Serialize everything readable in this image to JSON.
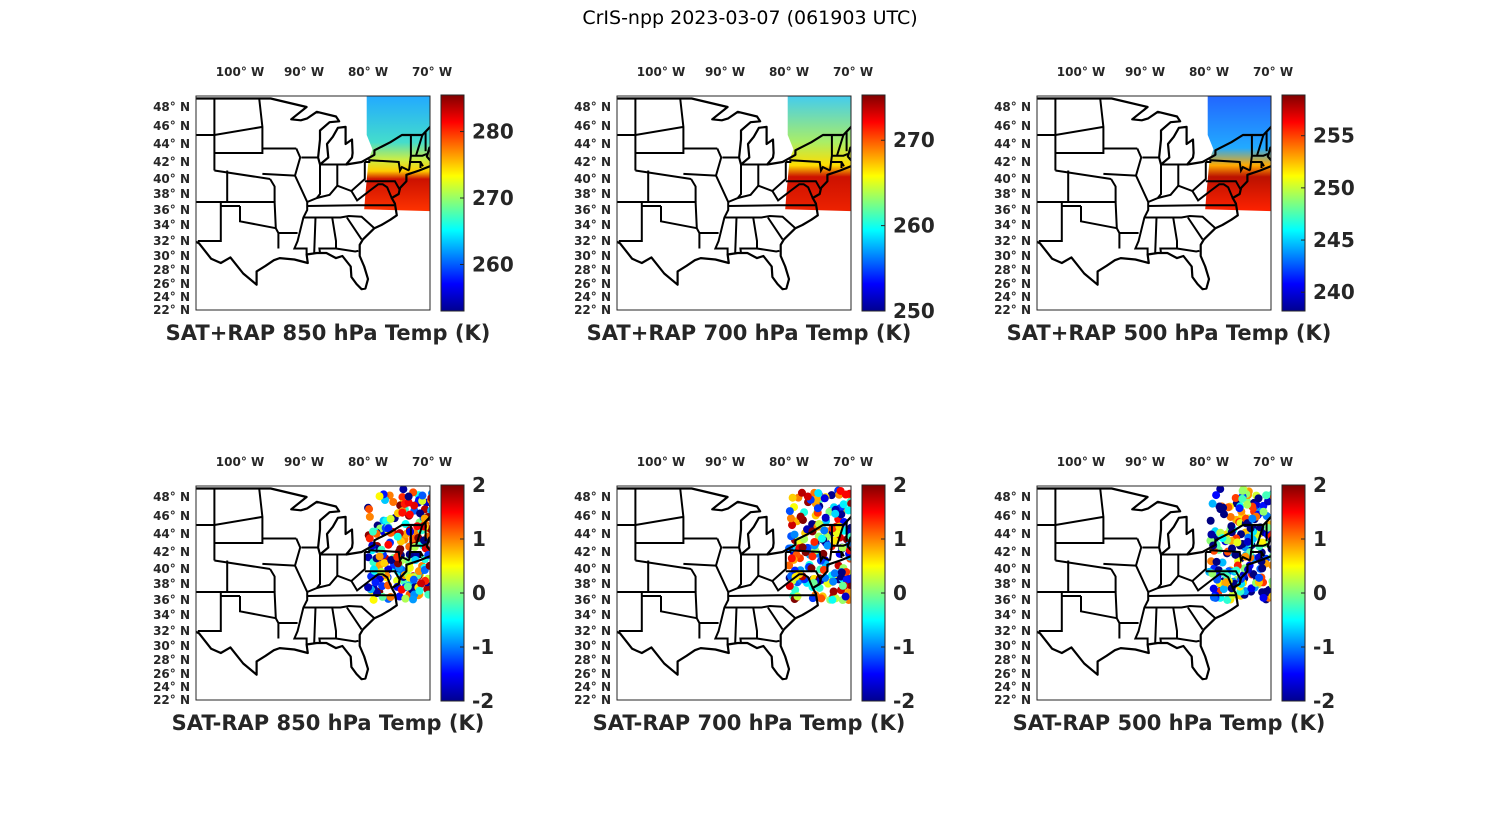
{
  "figure_title": "CrIS-npp 2023-03-07 (061903 UTC)",
  "lon_labels": [
    "100° W",
    "90° W",
    "80° W",
    "70° W"
  ],
  "lat_labels": [
    "48° N",
    "46° N",
    "44° N",
    "42° N",
    "40° N",
    "38° N",
    "36° N",
    "34° N",
    "32° N",
    "30° N",
    "28° N",
    "26° N",
    "24° N",
    "22° N"
  ],
  "colormap": "jet",
  "chart_data": [
    {
      "type": "map",
      "title": "SAT+RAP 850 hPa Temp (K)",
      "field": "sum",
      "clim": [
        253,
        285.5
      ],
      "colorbar_ticks": [
        260,
        270,
        280
      ],
      "colorbar_tick_labels": [
        "260",
        "270",
        "280"
      ]
    },
    {
      "type": "map",
      "title": "SAT+RAP 700 hPa Temp (K)",
      "field": "sum",
      "clim": [
        250,
        275.3
      ],
      "colorbar_ticks": [
        250,
        260,
        270
      ],
      "colorbar_tick_labels": [
        "250",
        "260",
        "270"
      ]
    },
    {
      "type": "map",
      "title": "SAT+RAP 500 hPa Temp (K)",
      "field": "sum",
      "clim": [
        238.2,
        258.9
      ],
      "colorbar_ticks": [
        240,
        245,
        250,
        255
      ],
      "colorbar_tick_labels": [
        "240",
        "245",
        "250",
        "255"
      ]
    },
    {
      "type": "map",
      "title": "SAT-RAP 850 hPa Temp (K)",
      "field": "diff",
      "clim": [
        -2,
        2
      ],
      "colorbar_ticks": [
        -2,
        -1,
        0,
        1,
        2
      ],
      "colorbar_tick_labels": [
        "-2",
        "-1",
        "0",
        "1",
        "2"
      ]
    },
    {
      "type": "map",
      "title": "SAT-RAP 700 hPa Temp (K)",
      "field": "diff",
      "clim": [
        -2,
        2
      ],
      "colorbar_ticks": [
        -2,
        -1,
        0,
        1,
        2
      ],
      "colorbar_tick_labels": [
        "-2",
        "-1",
        "0",
        "1",
        "2"
      ]
    },
    {
      "type": "map",
      "title": "SAT-RAP 500 hPa Temp (K)",
      "field": "diff",
      "clim": [
        -2,
        2
      ],
      "colorbar_ticks": [
        -2,
        -1,
        0,
        1,
        2
      ],
      "colorbar_tick_labels": [
        "-2",
        "-1",
        "0",
        "1",
        "2"
      ]
    }
  ]
}
